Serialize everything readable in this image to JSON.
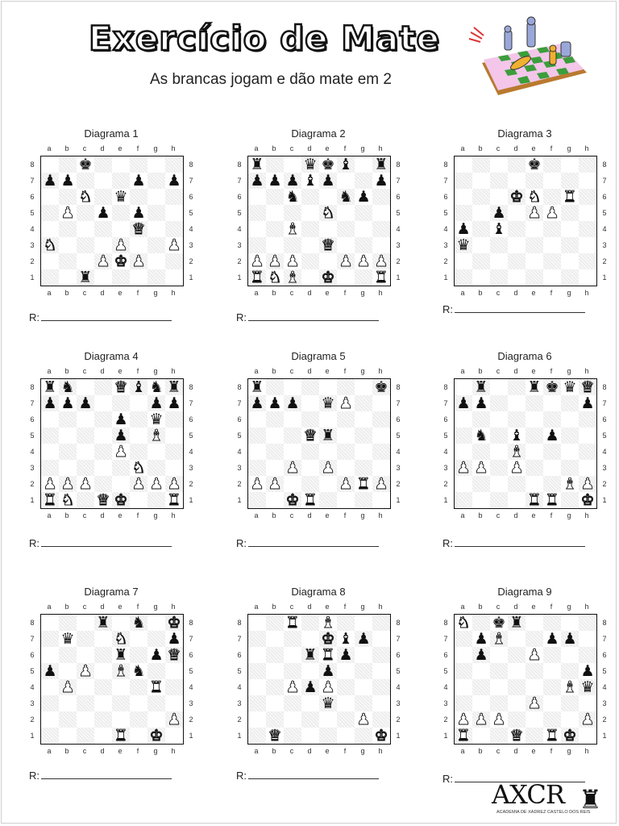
{
  "header": {
    "title": "Exercício de Mate",
    "subtitle": "As brancas jogam e dão mate em 2"
  },
  "files": [
    "a",
    "b",
    "c",
    "d",
    "e",
    "f",
    "g",
    "h"
  ],
  "ranks": [
    "8",
    "7",
    "6",
    "5",
    "4",
    "3",
    "2",
    "1"
  ],
  "answer_label": "R:",
  "diagrams": [
    {
      "title": "Diagrama 1",
      "pieces": [
        {
          "sq": "c8",
          "p": "bK"
        },
        {
          "sq": "a7",
          "p": "bP"
        },
        {
          "sq": "b7",
          "p": "bP"
        },
        {
          "sq": "f7",
          "p": "bP"
        },
        {
          "sq": "h7",
          "p": "bP"
        },
        {
          "sq": "c6",
          "p": "wN"
        },
        {
          "sq": "e6",
          "p": "bQ"
        },
        {
          "sq": "b5",
          "p": "wP"
        },
        {
          "sq": "d5",
          "p": "bP"
        },
        {
          "sq": "f5",
          "p": "bP"
        },
        {
          "sq": "f4",
          "p": "wQ"
        },
        {
          "sq": "a3",
          "p": "wN"
        },
        {
          "sq": "e3",
          "p": "wP"
        },
        {
          "sq": "h3",
          "p": "wP"
        },
        {
          "sq": "d2",
          "p": "wP"
        },
        {
          "sq": "e2",
          "p": "wK"
        },
        {
          "sq": "f2",
          "p": "wP"
        },
        {
          "sq": "c1",
          "p": "bR"
        }
      ]
    },
    {
      "title": "Diagrama 2",
      "pieces": [
        {
          "sq": "a8",
          "p": "bR"
        },
        {
          "sq": "d8",
          "p": "bQ"
        },
        {
          "sq": "e8",
          "p": "bK"
        },
        {
          "sq": "f8",
          "p": "bB"
        },
        {
          "sq": "h8",
          "p": "bR"
        },
        {
          "sq": "a7",
          "p": "bP"
        },
        {
          "sq": "b7",
          "p": "bP"
        },
        {
          "sq": "c7",
          "p": "bP"
        },
        {
          "sq": "d7",
          "p": "bB"
        },
        {
          "sq": "e7",
          "p": "bP"
        },
        {
          "sq": "h7",
          "p": "bP"
        },
        {
          "sq": "c6",
          "p": "bN"
        },
        {
          "sq": "f6",
          "p": "bN"
        },
        {
          "sq": "g6",
          "p": "bP"
        },
        {
          "sq": "e5",
          "p": "wN"
        },
        {
          "sq": "c4",
          "p": "wB"
        },
        {
          "sq": "e3",
          "p": "wQ"
        },
        {
          "sq": "a2",
          "p": "wP"
        },
        {
          "sq": "b2",
          "p": "wP"
        },
        {
          "sq": "c2",
          "p": "wP"
        },
        {
          "sq": "f2",
          "p": "wP"
        },
        {
          "sq": "g2",
          "p": "wP"
        },
        {
          "sq": "h2",
          "p": "wP"
        },
        {
          "sq": "a1",
          "p": "wR"
        },
        {
          "sq": "b1",
          "p": "wN"
        },
        {
          "sq": "c1",
          "p": "wB"
        },
        {
          "sq": "e1",
          "p": "wK"
        },
        {
          "sq": "h1",
          "p": "wR"
        }
      ]
    },
    {
      "title": "Diagrama 3",
      "pieces": [
        {
          "sq": "e8",
          "p": "bK"
        },
        {
          "sq": "d6",
          "p": "wK"
        },
        {
          "sq": "e6",
          "p": "wN"
        },
        {
          "sq": "g6",
          "p": "wR"
        },
        {
          "sq": "c5",
          "p": "bP"
        },
        {
          "sq": "e5",
          "p": "wP"
        },
        {
          "sq": "f5",
          "p": "wP"
        },
        {
          "sq": "a4",
          "p": "bP"
        },
        {
          "sq": "c4",
          "p": "bB"
        },
        {
          "sq": "a3",
          "p": "bQ"
        }
      ]
    },
    {
      "title": "Diagrama 4",
      "pieces": [
        {
          "sq": "a8",
          "p": "bR"
        },
        {
          "sq": "b8",
          "p": "bN"
        },
        {
          "sq": "e8",
          "p": "wQ"
        },
        {
          "sq": "f8",
          "p": "bB"
        },
        {
          "sq": "g8",
          "p": "bN"
        },
        {
          "sq": "h8",
          "p": "bR"
        },
        {
          "sq": "a7",
          "p": "bP"
        },
        {
          "sq": "b7",
          "p": "bP"
        },
        {
          "sq": "c7",
          "p": "bP"
        },
        {
          "sq": "g7",
          "p": "bP"
        },
        {
          "sq": "h7",
          "p": "bP"
        },
        {
          "sq": "e6",
          "p": "bP"
        },
        {
          "sq": "g6",
          "p": "bQ"
        },
        {
          "sq": "e5",
          "p": "bP"
        },
        {
          "sq": "g5",
          "p": "wB"
        },
        {
          "sq": "e4",
          "p": "wP"
        },
        {
          "sq": "f3",
          "p": "wN"
        },
        {
          "sq": "a2",
          "p": "wP"
        },
        {
          "sq": "b2",
          "p": "wP"
        },
        {
          "sq": "c2",
          "p": "wP"
        },
        {
          "sq": "f2",
          "p": "wP"
        },
        {
          "sq": "g2",
          "p": "wP"
        },
        {
          "sq": "h2",
          "p": "wP"
        },
        {
          "sq": "a1",
          "p": "wR"
        },
        {
          "sq": "b1",
          "p": "wN"
        },
        {
          "sq": "d1",
          "p": "wQ"
        },
        {
          "sq": "e1",
          "p": "wK"
        },
        {
          "sq": "h1",
          "p": "wR"
        }
      ]
    },
    {
      "title": "Diagrama 5",
      "pieces": [
        {
          "sq": "a8",
          "p": "bR"
        },
        {
          "sq": "h8",
          "p": "bK"
        },
        {
          "sq": "a7",
          "p": "bP"
        },
        {
          "sq": "b7",
          "p": "bP"
        },
        {
          "sq": "c7",
          "p": "bP"
        },
        {
          "sq": "e7",
          "p": "bQ"
        },
        {
          "sq": "f7",
          "p": "wP"
        },
        {
          "sq": "d5",
          "p": "wQ"
        },
        {
          "sq": "e5",
          "p": "bR"
        },
        {
          "sq": "c3",
          "p": "wP"
        },
        {
          "sq": "e3",
          "p": "wP"
        },
        {
          "sq": "a2",
          "p": "wP"
        },
        {
          "sq": "b2",
          "p": "wP"
        },
        {
          "sq": "f2",
          "p": "wP"
        },
        {
          "sq": "g2",
          "p": "wR"
        },
        {
          "sq": "h2",
          "p": "wP"
        },
        {
          "sq": "c1",
          "p": "wK"
        },
        {
          "sq": "d1",
          "p": "wR"
        }
      ]
    },
    {
      "title": "Diagrama 6",
      "pieces": [
        {
          "sq": "b8",
          "p": "bR"
        },
        {
          "sq": "e8",
          "p": "bR"
        },
        {
          "sq": "f8",
          "p": "bK"
        },
        {
          "sq": "g8",
          "p": "bQ"
        },
        {
          "sq": "h8",
          "p": "wQ"
        },
        {
          "sq": "a7",
          "p": "bP"
        },
        {
          "sq": "b7",
          "p": "bP"
        },
        {
          "sq": "h7",
          "p": "bP"
        },
        {
          "sq": "b5",
          "p": "bN"
        },
        {
          "sq": "d5",
          "p": "bB"
        },
        {
          "sq": "f5",
          "p": "bP"
        },
        {
          "sq": "d4",
          "p": "wB"
        },
        {
          "sq": "a3",
          "p": "wP"
        },
        {
          "sq": "b3",
          "p": "wP"
        },
        {
          "sq": "d3",
          "p": "wP"
        },
        {
          "sq": "g2",
          "p": "wB"
        },
        {
          "sq": "h2",
          "p": "wP"
        },
        {
          "sq": "e1",
          "p": "wR"
        },
        {
          "sq": "f1",
          "p": "wR"
        },
        {
          "sq": "h1",
          "p": "wK"
        }
      ]
    },
    {
      "title": "Diagrama 7",
      "pieces": [
        {
          "sq": "d8",
          "p": "bR"
        },
        {
          "sq": "f8",
          "p": "bN"
        },
        {
          "sq": "h8",
          "p": "wK"
        },
        {
          "sq": "b7",
          "p": "bQ"
        },
        {
          "sq": "e7",
          "p": "wN"
        },
        {
          "sq": "h7",
          "p": "bP"
        },
        {
          "sq": "e6",
          "p": "bR"
        },
        {
          "sq": "g6",
          "p": "bP"
        },
        {
          "sq": "h6",
          "p": "wQ"
        },
        {
          "sq": "a5",
          "p": "bP"
        },
        {
          "sq": "c5",
          "p": "wP"
        },
        {
          "sq": "e5",
          "p": "wB"
        },
        {
          "sq": "f5",
          "p": "bN"
        },
        {
          "sq": "b4",
          "p": "wP"
        },
        {
          "sq": "g4",
          "p": "wR"
        },
        {
          "sq": "h2",
          "p": "wP"
        },
        {
          "sq": "e1",
          "p": "wR"
        },
        {
          "sq": "g1",
          "p": "wK"
        }
      ]
    },
    {
      "title": "Diagrama 8",
      "pieces": [
        {
          "sq": "c8",
          "p": "wR"
        },
        {
          "sq": "e8",
          "p": "wB"
        },
        {
          "sq": "e7",
          "p": "wK"
        },
        {
          "sq": "f7",
          "p": "bB"
        },
        {
          "sq": "g7",
          "p": "bP"
        },
        {
          "sq": "d6",
          "p": "bR"
        },
        {
          "sq": "e6",
          "p": "wR"
        },
        {
          "sq": "f6",
          "p": "bP"
        },
        {
          "sq": "e5",
          "p": "bP"
        },
        {
          "sq": "c4",
          "p": "wP"
        },
        {
          "sq": "d4",
          "p": "bP"
        },
        {
          "sq": "e4",
          "p": "wP"
        },
        {
          "sq": "e3",
          "p": "bQ"
        },
        {
          "sq": "g2",
          "p": "wP"
        },
        {
          "sq": "b1",
          "p": "wQ"
        },
        {
          "sq": "h1",
          "p": "wK"
        }
      ]
    },
    {
      "title": "Diagrama 9",
      "pieces": [
        {
          "sq": "a8",
          "p": "wN"
        },
        {
          "sq": "c8",
          "p": "bK"
        },
        {
          "sq": "d8",
          "p": "bR"
        },
        {
          "sq": "b7",
          "p": "bP"
        },
        {
          "sq": "c7",
          "p": "wB"
        },
        {
          "sq": "f7",
          "p": "bP"
        },
        {
          "sq": "g7",
          "p": "bP"
        },
        {
          "sq": "b6",
          "p": "bP"
        },
        {
          "sq": "e6",
          "p": "wP"
        },
        {
          "sq": "h5",
          "p": "bP"
        },
        {
          "sq": "g4",
          "p": "wB"
        },
        {
          "sq": "h4",
          "p": "bQ"
        },
        {
          "sq": "e3",
          "p": "wP"
        },
        {
          "sq": "a2",
          "p": "wP"
        },
        {
          "sq": "b2",
          "p": "wP"
        },
        {
          "sq": "c2",
          "p": "wP"
        },
        {
          "sq": "h2",
          "p": "wP"
        },
        {
          "sq": "a1",
          "p": "wR"
        },
        {
          "sq": "d1",
          "p": "wQ"
        },
        {
          "sq": "f1",
          "p": "wR"
        },
        {
          "sq": "g1",
          "p": "wK"
        }
      ]
    }
  ],
  "brand": {
    "name": "AXCR",
    "tagline": "ACADEMIA DE XADREZ CASTELO DOS REIS"
  }
}
